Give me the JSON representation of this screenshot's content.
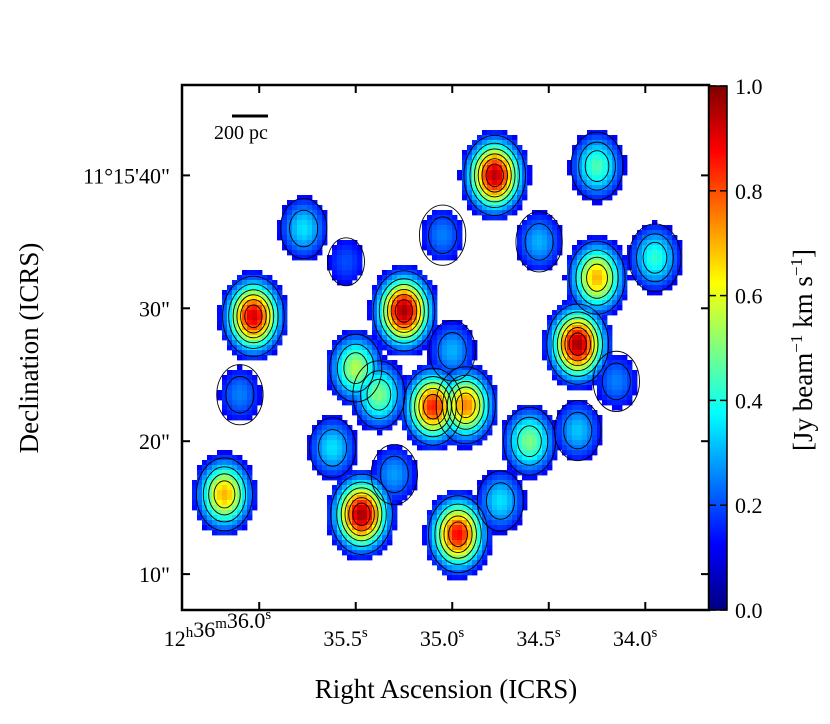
{
  "chart_data": {
    "type": "heatmap",
    "title": "",
    "xlabel": "Right Ascension (ICRS)",
    "ylabel": "Declination (ICRS)",
    "colorbar": {
      "label": "[Jy beam⁻¹ km s⁻¹]",
      "label_text": {
        "pre": "[Jy beam",
        "exp1": "−1",
        "mid": " km s",
        "exp2": "−1",
        "post": "]"
      },
      "min": 0.0,
      "max": 1.0,
      "ticks": [
        "0.0",
        "0.2",
        "0.4",
        "0.6",
        "0.8",
        "1.0"
      ],
      "colormap": "jet",
      "colors": [
        "#00007f",
        "#0000ff",
        "#007fff",
        "#00ffff",
        "#7fff7f",
        "#ffff00",
        "#ff7f00",
        "#ff0000",
        "#7f0000"
      ]
    },
    "x_ticks": [
      {
        "value": 36.0,
        "parts": [
          "12",
          "h",
          "36",
          "m",
          "36.0",
          "s"
        ]
      },
      {
        "value": 35.5,
        "parts": [
          "",
          "",
          "",
          "",
          "35.5",
          "s"
        ]
      },
      {
        "value": 35.0,
        "parts": [
          "",
          "",
          "",
          "",
          "35.0",
          "s"
        ]
      },
      {
        "value": 34.5,
        "parts": [
          "",
          "",
          "",
          "",
          "34.5",
          "s"
        ]
      },
      {
        "value": 34.0,
        "parts": [
          "",
          "",
          "",
          "",
          "34.0",
          "s"
        ]
      }
    ],
    "y_ticks": [
      {
        "value": 40,
        "label": "11°15'40\""
      },
      {
        "value": 30,
        "label": "30\""
      },
      {
        "value": 20,
        "label": "20\""
      },
      {
        "value": 10,
        "label": "10\""
      }
    ],
    "xlim": [
      36.4,
      33.67
    ],
    "ylim": [
      7.3,
      46.8
    ],
    "scale_bar": {
      "label": "200 pc"
    },
    "clumps": [
      {
        "ra": 36.03,
        "dec": 29.4,
        "peak": 0.92
      },
      {
        "ra": 35.77,
        "dec": 36.0,
        "peak": 0.35
      },
      {
        "ra": 35.5,
        "dec": 25.5,
        "peak": 0.55
      },
      {
        "ra": 35.38,
        "dec": 23.5,
        "peak": 0.5
      },
      {
        "ra": 35.25,
        "dec": 29.8,
        "peak": 0.97
      },
      {
        "ra": 35.1,
        "dec": 22.6,
        "peak": 0.85
      },
      {
        "ra": 34.93,
        "dec": 22.7,
        "peak": 0.75
      },
      {
        "ra": 35.0,
        "dec": 26.8,
        "peak": 0.3
      },
      {
        "ra": 34.78,
        "dec": 40.0,
        "peak": 0.95
      },
      {
        "ra": 34.35,
        "dec": 27.3,
        "peak": 0.97
      },
      {
        "ra": 34.25,
        "dec": 32.3,
        "peak": 0.7
      },
      {
        "ra": 33.95,
        "dec": 33.8,
        "peak": 0.42
      },
      {
        "ra": 34.25,
        "dec": 40.7,
        "peak": 0.45
      },
      {
        "ra": 35.47,
        "dec": 14.5,
        "peak": 0.97
      },
      {
        "ra": 34.97,
        "dec": 13.0,
        "peak": 0.88
      },
      {
        "ra": 35.62,
        "dec": 19.5,
        "peak": 0.35
      },
      {
        "ra": 36.18,
        "dec": 16.0,
        "peak": 0.7
      },
      {
        "ra": 36.1,
        "dec": 23.5,
        "peak": 0.25
      },
      {
        "ra": 34.6,
        "dec": 20.0,
        "peak": 0.5
      },
      {
        "ra": 34.35,
        "dec": 20.8,
        "peak": 0.32
      },
      {
        "ra": 34.55,
        "dec": 35.0,
        "peak": 0.3
      },
      {
        "ra": 35.3,
        "dec": 17.5,
        "peak": 0.28
      },
      {
        "ra": 34.75,
        "dec": 15.5,
        "peak": 0.35
      },
      {
        "ra": 35.55,
        "dec": 33.5,
        "peak": 0.2
      },
      {
        "ra": 35.05,
        "dec": 35.5,
        "peak": 0.25
      },
      {
        "ra": 34.15,
        "dec": 24.5,
        "peak": 0.25
      }
    ]
  }
}
